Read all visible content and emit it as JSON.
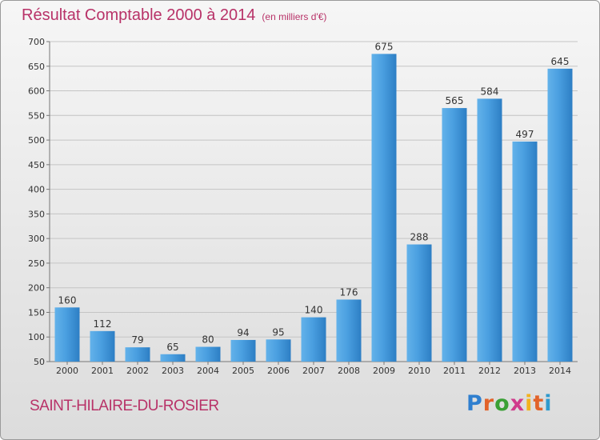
{
  "chart_data": {
    "type": "bar",
    "title": "Résultat Comptable 2000 à 2014",
    "subtitle": "(en milliers d'€)",
    "categories": [
      "2000",
      "2001",
      "2002",
      "2003",
      "2004",
      "2005",
      "2006",
      "2007",
      "2008",
      "2009",
      "2010",
      "2011",
      "2012",
      "2013",
      "2014"
    ],
    "values": [
      160,
      112,
      79,
      65,
      80,
      94,
      95,
      140,
      176,
      675,
      288,
      565,
      584,
      497,
      645
    ],
    "ylim": [
      50,
      700
    ],
    "yticks": [
      50,
      100,
      150,
      200,
      250,
      300,
      350,
      400,
      450,
      500,
      550,
      600,
      650,
      700
    ],
    "grid": true,
    "bar_color": "#3d8fd6"
  },
  "commune": "SAINT-HILAIRE-DU-ROSIER",
  "logo": {
    "text": "Proxiti",
    "letters": [
      "P",
      "r",
      "o",
      "x",
      "i",
      "t",
      "i"
    ],
    "colors": [
      "#2f7fcf",
      "#e2632a",
      "#3aa035",
      "#d03a8c",
      "#f2b21d",
      "#e2632a",
      "#2f9acd"
    ]
  }
}
